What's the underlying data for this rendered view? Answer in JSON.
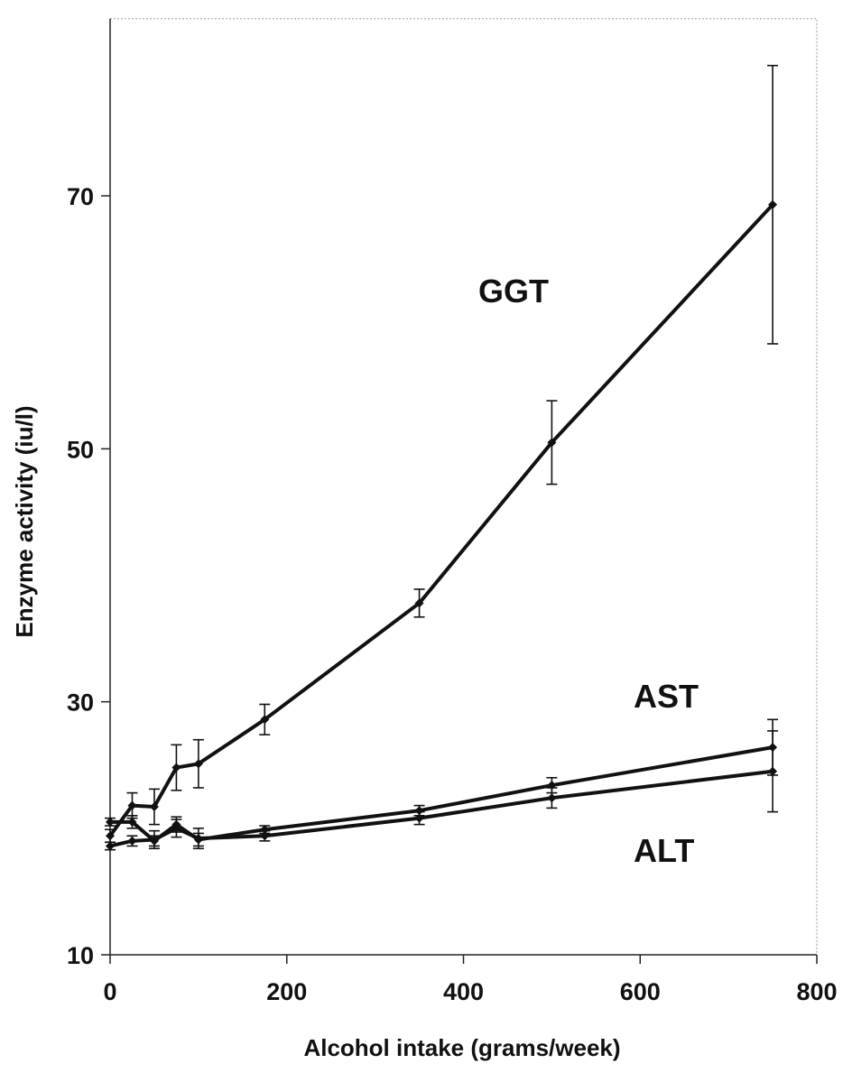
{
  "chart_data": {
    "type": "line",
    "title": "",
    "xlabel": "Alcohol intake (grams/week)",
    "ylabel": "Enzyme activity (iu/l)",
    "xlim": [
      0,
      800
    ],
    "ylim": [
      10,
      84
    ],
    "xticks": [
      0,
      200,
      400,
      600,
      800
    ],
    "yticks": [
      10,
      30,
      50,
      70
    ],
    "grid": false,
    "legend": "none (series labelled directly on plot)",
    "series": [
      {
        "name": "GGT",
        "x": [
          0,
          25,
          50,
          75,
          100,
          175,
          350,
          500,
          750
        ],
        "y": [
          19.4,
          21.8,
          21.7,
          24.8,
          25.1,
          28.6,
          37.8,
          50.5,
          69.3
        ],
        "err": [
          0.5,
          1.0,
          1.4,
          1.8,
          1.9,
          1.2,
          1.1,
          3.3,
          11.0
        ]
      },
      {
        "name": "AST",
        "x": [
          0,
          25,
          50,
          75,
          100,
          175,
          350,
          500,
          750
        ],
        "y": [
          20.5,
          20.5,
          19.0,
          20.3,
          19.1,
          19.9,
          21.4,
          23.4,
          26.4
        ],
        "err": [
          0.3,
          0.5,
          0.4,
          0.6,
          0.5,
          0.3,
          0.4,
          0.6,
          2.2
        ]
      },
      {
        "name": "ALT",
        "x": [
          0,
          25,
          50,
          75,
          100,
          175,
          350,
          500,
          750
        ],
        "y": [
          18.6,
          19.0,
          19.1,
          20.0,
          19.2,
          19.4,
          20.8,
          22.4,
          24.5
        ],
        "err": [
          0.3,
          0.4,
          0.7,
          0.7,
          0.8,
          0.4,
          0.5,
          0.8,
          3.2
        ]
      }
    ]
  },
  "labels": {
    "ggt": "GGT",
    "ast": "AST",
    "alt": "ALT"
  },
  "colors": {
    "line": "#111111",
    "axis": "#222222"
  }
}
